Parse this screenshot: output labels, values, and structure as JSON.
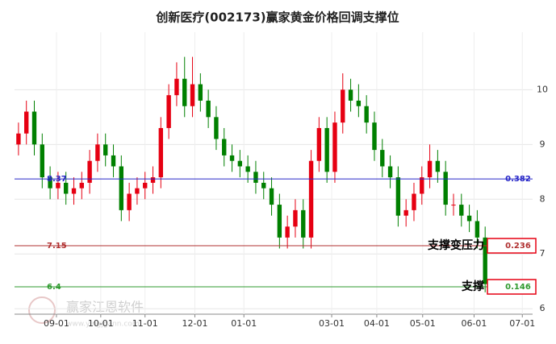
{
  "chart_data": {
    "type": "candlestick",
    "title": "创新医疗(002173)赢家黄金价格回调支撑位",
    "watermark": "赢家江恩软件",
    "watermark_url": "www.yingjgann.com",
    "up_color": "#e60012",
    "down_color": "#008000",
    "open": [
      9.0,
      9.2,
      9.6,
      9.0,
      8.4,
      8.2,
      8.3,
      8.1,
      8.2,
      8.3,
      8.7,
      9.0,
      8.8,
      8.6,
      7.8,
      8.1,
      8.2,
      8.3,
      8.4,
      9.3,
      9.9,
      10.2,
      9.7,
      10.1,
      9.8,
      9.5,
      9.1,
      8.8,
      8.7,
      8.6,
      8.5,
      8.3,
      8.2,
      7.9,
      7.3,
      7.5,
      7.8,
      7.3,
      8.7,
      9.3,
      8.5,
      9.4,
      10.0,
      9.8,
      9.7,
      9.4,
      8.9,
      8.6,
      8.4,
      7.7,
      7.8,
      8.1,
      8.4,
      8.7,
      8.5,
      7.9,
      7.9,
      7.7,
      7.6,
      7.3
    ],
    "high": [
      9.4,
      9.8,
      9.8,
      9.2,
      8.6,
      8.5,
      8.5,
      8.4,
      8.5,
      8.9,
      9.2,
      9.2,
      9.0,
      8.8,
      8.3,
      8.4,
      8.5,
      8.6,
      9.5,
      10.1,
      10.5,
      10.6,
      10.6,
      10.3,
      10.0,
      9.7,
      9.3,
      9.0,
      8.9,
      8.8,
      8.7,
      8.5,
      8.4,
      8.1,
      7.7,
      8.0,
      8.0,
      8.9,
      9.5,
      9.5,
      9.6,
      10.3,
      10.2,
      10.1,
      9.9,
      9.6,
      9.1,
      8.8,
      8.6,
      8.0,
      8.3,
      8.6,
      9.0,
      8.9,
      8.7,
      8.1,
      8.1,
      7.9,
      7.8,
      7.5
    ],
    "low": [
      8.8,
      9.0,
      8.8,
      8.2,
      8.0,
      8.0,
      7.9,
      7.9,
      8.0,
      8.1,
      8.5,
      8.6,
      8.4,
      7.6,
      7.6,
      7.9,
      8.0,
      8.1,
      8.2,
      9.1,
      9.7,
      9.5,
      9.5,
      9.6,
      9.3,
      8.9,
      8.6,
      8.5,
      8.4,
      8.3,
      8.1,
      8.0,
      7.7,
      7.1,
      7.1,
      7.3,
      7.1,
      7.1,
      8.5,
      8.3,
      8.3,
      9.2,
      9.6,
      9.5,
      9.2,
      8.7,
      8.4,
      8.2,
      7.5,
      7.5,
      7.6,
      7.9,
      8.2,
      8.3,
      7.7,
      7.7,
      7.5,
      7.4,
      7.1,
      6.3
    ],
    "close": [
      9.2,
      9.6,
      9.0,
      8.4,
      8.2,
      8.3,
      8.1,
      8.2,
      8.3,
      8.7,
      9.0,
      8.8,
      8.6,
      7.8,
      8.1,
      8.2,
      8.3,
      8.4,
      9.3,
      9.9,
      10.2,
      9.7,
      10.1,
      9.8,
      9.5,
      9.1,
      8.8,
      8.7,
      8.6,
      8.5,
      8.3,
      8.2,
      7.9,
      7.3,
      7.5,
      7.8,
      7.3,
      8.7,
      9.3,
      8.5,
      9.4,
      10.0,
      9.8,
      9.7,
      9.4,
      8.9,
      8.6,
      8.4,
      7.7,
      7.8,
      8.1,
      8.4,
      8.7,
      8.5,
      7.9,
      7.9,
      7.7,
      7.6,
      7.3,
      6.45
    ],
    "xlim": [
      -0.5,
      65
    ],
    "xticks": [
      {
        "value": 4.8,
        "label": "09-01"
      },
      {
        "value": 10.4,
        "label": "10-01"
      },
      {
        "value": 16.0,
        "label": "11-01"
      },
      {
        "value": 22.3,
        "label": "12-01"
      },
      {
        "value": 28.5,
        "label": "01-01"
      },
      {
        "value": 39.6,
        "label": "03-01"
      },
      {
        "value": 45.3,
        "label": "04-01"
      },
      {
        "value": 51.1,
        "label": "05-01"
      },
      {
        "value": 57.6,
        "label": "06-01"
      },
      {
        "value": 63.7,
        "label": "07-01"
      }
    ],
    "ylim": [
      5.9,
      11.05
    ],
    "yticks": [
      6,
      7,
      8,
      9,
      10
    ],
    "grid": true,
    "levels": [
      {
        "value": 8.37,
        "ratio": 0.382,
        "color": "#2626c8"
      },
      {
        "value": 7.15,
        "ratio": 0.236,
        "color": "#b03030",
        "note": "支撑变压力"
      },
      {
        "value": 6.4,
        "ratio": 0.146,
        "color": "#2e9a2e",
        "note": "支撑"
      }
    ]
  }
}
